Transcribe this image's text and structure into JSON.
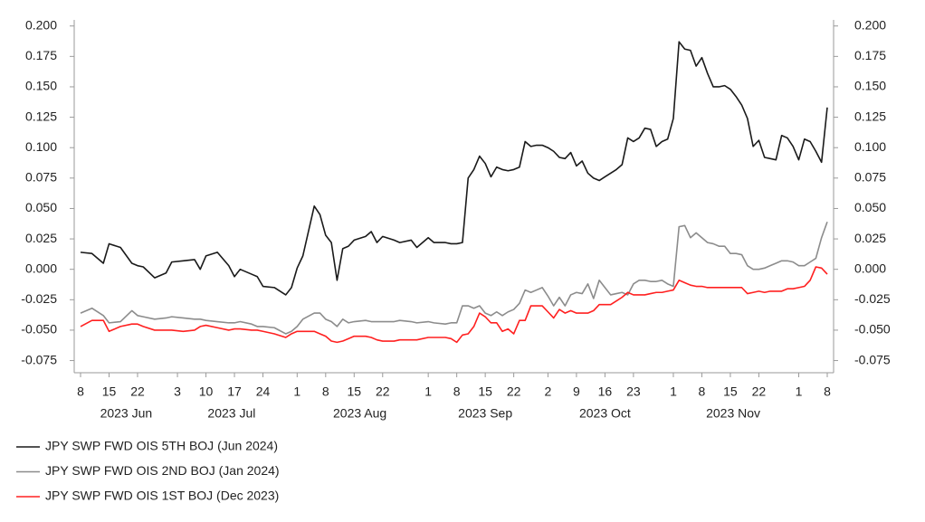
{
  "chart_data": {
    "type": "line",
    "x": [
      "2023-06-08",
      "2023-06-12",
      "2023-06-14",
      "2023-06-15",
      "2023-06-19",
      "2023-06-21",
      "2023-06-22",
      "2023-06-23",
      "2023-06-27",
      "2023-06-29",
      "2023-06-30",
      "2023-07-04",
      "2023-07-06",
      "2023-07-07",
      "2023-07-10",
      "2023-07-12",
      "2023-07-14",
      "2023-07-17",
      "2023-07-18",
      "2023-07-20",
      "2023-07-21",
      "2023-07-24",
      "2023-07-26",
      "2023-07-28",
      "2023-07-31",
      "2023-08-01",
      "2023-08-02",
      "2023-08-04",
      "2023-08-07",
      "2023-08-08",
      "2023-08-09",
      "2023-08-10",
      "2023-08-11",
      "2023-08-14",
      "2023-08-15",
      "2023-08-17",
      "2023-08-18",
      "2023-08-21",
      "2023-08-22",
      "2023-08-24",
      "2023-08-25",
      "2023-08-29",
      "2023-08-30",
      "2023-09-01",
      "2023-09-04",
      "2023-09-06",
      "2023-09-07",
      "2023-09-08",
      "2023-09-11",
      "2023-09-12",
      "2023-09-13",
      "2023-09-14",
      "2023-09-15",
      "2023-09-18",
      "2023-09-19",
      "2023-09-20",
      "2023-09-21",
      "2023-09-22",
      "2023-09-25",
      "2023-09-26",
      "2023-09-27",
      "2023-09-28",
      "2023-09-29",
      "2023-10-02",
      "2023-10-03",
      "2023-10-04",
      "2023-10-05",
      "2023-10-06",
      "2023-10-09",
      "2023-10-10",
      "2023-10-11",
      "2023-10-12",
      "2023-10-13",
      "2023-10-16",
      "2023-10-17",
      "2023-10-18",
      "2023-10-19",
      "2023-10-20",
      "2023-10-23",
      "2023-10-24",
      "2023-10-25",
      "2023-10-26",
      "2023-10-27",
      "2023-10-30",
      "2023-10-31",
      "2023-11-01",
      "2023-11-02",
      "2023-11-03",
      "2023-11-06",
      "2023-11-07",
      "2023-11-08",
      "2023-11-09",
      "2023-11-10",
      "2023-11-13",
      "2023-11-14",
      "2023-11-15",
      "2023-11-16",
      "2023-11-17",
      "2023-11-20",
      "2023-11-21",
      "2023-11-22",
      "2023-11-23",
      "2023-11-24",
      "2023-11-27",
      "2023-11-28",
      "2023-11-29",
      "2023-11-30",
      "2023-12-01",
      "2023-12-04",
      "2023-12-05",
      "2023-12-06",
      "2023-12-07",
      "2023-12-08"
    ],
    "series": [
      {
        "name": "JPY SWP FWD OIS 5TH BOJ (Jun 2024)",
        "color": "#1a1a1a",
        "values": [
          0.014,
          0.013,
          0.005,
          0.021,
          0.018,
          0.005,
          0.003,
          0.002,
          -0.007,
          -0.003,
          0.006,
          0.007,
          0.008,
          0.0,
          0.011,
          0.014,
          0.003,
          -0.006,
          0.0,
          -0.004,
          -0.006,
          -0.014,
          -0.015,
          -0.021,
          -0.015,
          0.001,
          0.011,
          0.052,
          0.045,
          0.028,
          0.022,
          -0.009,
          0.017,
          0.019,
          0.024,
          0.027,
          0.031,
          0.022,
          0.027,
          0.024,
          0.022,
          0.024,
          0.018,
          0.026,
          0.022,
          0.022,
          0.021,
          0.021,
          0.022,
          0.075,
          0.082,
          0.093,
          0.087,
          0.076,
          0.084,
          0.082,
          0.081,
          0.082,
          0.084,
          0.105,
          0.101,
          0.102,
          0.102,
          0.1,
          0.097,
          0.092,
          0.091,
          0.096,
          0.085,
          0.089,
          0.079,
          0.075,
          0.073,
          0.076,
          0.079,
          0.082,
          0.086,
          0.108,
          0.105,
          0.108,
          0.116,
          0.115,
          0.101,
          0.105,
          0.107,
          0.124,
          0.187,
          0.181,
          0.18,
          0.167,
          0.174,
          0.161,
          0.15,
          0.15,
          0.151,
          0.148,
          0.142,
          0.135,
          0.124,
          0.101,
          0.106,
          0.092,
          0.091,
          0.09,
          0.11,
          0.108,
          0.101,
          0.09,
          0.107,
          0.105,
          0.097,
          0.088,
          0.133
        ]
      },
      {
        "name": "JPY SWP FWD OIS 2ND BOJ (Jan 2024)",
        "color": "#8c8c8c",
        "values": [
          -0.036,
          -0.032,
          -0.038,
          -0.044,
          -0.043,
          -0.034,
          -0.038,
          -0.039,
          -0.041,
          -0.04,
          -0.039,
          -0.04,
          -0.041,
          -0.041,
          -0.042,
          -0.043,
          -0.044,
          -0.044,
          -0.043,
          -0.045,
          -0.047,
          -0.047,
          -0.048,
          -0.053,
          -0.051,
          -0.047,
          -0.041,
          -0.036,
          -0.036,
          -0.041,
          -0.043,
          -0.047,
          -0.041,
          -0.044,
          -0.043,
          -0.042,
          -0.043,
          -0.043,
          -0.043,
          -0.043,
          -0.042,
          -0.043,
          -0.044,
          -0.043,
          -0.044,
          -0.045,
          -0.044,
          -0.044,
          -0.03,
          -0.03,
          -0.032,
          -0.03,
          -0.036,
          -0.038,
          -0.035,
          -0.038,
          -0.035,
          -0.033,
          -0.028,
          -0.017,
          -0.019,
          -0.017,
          -0.015,
          -0.022,
          -0.03,
          -0.023,
          -0.03,
          -0.021,
          -0.019,
          -0.02,
          -0.012,
          -0.024,
          -0.009,
          -0.015,
          -0.021,
          -0.02,
          -0.019,
          -0.021,
          -0.012,
          -0.009,
          -0.009,
          -0.01,
          -0.01,
          -0.009,
          -0.012,
          -0.014,
          0.035,
          0.036,
          0.026,
          0.03,
          0.026,
          0.022,
          0.021,
          0.019,
          0.019,
          0.013,
          0.013,
          0.012,
          0.003,
          0.0,
          0.0,
          0.001,
          0.003,
          0.005,
          0.007,
          0.007,
          0.006,
          0.003,
          0.003,
          0.006,
          0.009,
          0.026,
          0.039
        ]
      },
      {
        "name": "JPY SWP FWD OIS 1ST BOJ (Dec 2023)",
        "color": "#ff2020",
        "values": [
          -0.047,
          -0.042,
          -0.042,
          -0.051,
          -0.047,
          -0.045,
          -0.045,
          -0.047,
          -0.05,
          -0.05,
          -0.05,
          -0.051,
          -0.05,
          -0.047,
          -0.046,
          -0.048,
          -0.05,
          -0.049,
          -0.049,
          -0.05,
          -0.05,
          -0.051,
          -0.053,
          -0.056,
          -0.053,
          -0.051,
          -0.051,
          -0.051,
          -0.053,
          -0.055,
          -0.059,
          -0.06,
          -0.059,
          -0.057,
          -0.055,
          -0.055,
          -0.056,
          -0.058,
          -0.059,
          -0.059,
          -0.058,
          -0.058,
          -0.058,
          -0.056,
          -0.056,
          -0.056,
          -0.057,
          -0.06,
          -0.054,
          -0.053,
          -0.047,
          -0.036,
          -0.039,
          -0.044,
          -0.044,
          -0.051,
          -0.049,
          -0.053,
          -0.042,
          -0.042,
          -0.03,
          -0.03,
          -0.03,
          -0.035,
          -0.04,
          -0.033,
          -0.036,
          -0.034,
          -0.036,
          -0.036,
          -0.036,
          -0.034,
          -0.029,
          -0.029,
          -0.029,
          -0.026,
          -0.023,
          -0.019,
          -0.021,
          -0.021,
          -0.021,
          -0.02,
          -0.019,
          -0.019,
          -0.018,
          -0.017,
          -0.009,
          -0.011,
          -0.013,
          -0.014,
          -0.014,
          -0.015,
          -0.015,
          -0.015,
          -0.015,
          -0.015,
          -0.015,
          -0.015,
          -0.02,
          -0.019,
          -0.018,
          -0.019,
          -0.018,
          -0.018,
          -0.018,
          -0.016,
          -0.016,
          -0.015,
          -0.014,
          -0.009,
          0.002,
          0.001,
          -0.004
        ]
      }
    ],
    "xlim": [
      "2023-06-08",
      "2023-12-08"
    ],
    "xticks": [
      {
        "value": "2023-06-08",
        "label": "8"
      },
      {
        "value": "2023-06-15",
        "label": "15"
      },
      {
        "value": "2023-06-22",
        "label": "22"
      },
      {
        "value": "2023-07-03",
        "label": "3"
      },
      {
        "value": "2023-07-10",
        "label": "10"
      },
      {
        "value": "2023-07-17",
        "label": "17"
      },
      {
        "value": "2023-07-24",
        "label": "24"
      },
      {
        "value": "2023-08-01",
        "label": "1"
      },
      {
        "value": "2023-08-08",
        "label": "8"
      },
      {
        "value": "2023-08-15",
        "label": "15"
      },
      {
        "value": "2023-08-22",
        "label": "22"
      },
      {
        "value": "2023-09-01",
        "label": "1"
      },
      {
        "value": "2023-09-08",
        "label": "8"
      },
      {
        "value": "2023-09-15",
        "label": "15"
      },
      {
        "value": "2023-09-22",
        "label": "22"
      },
      {
        "value": "2023-10-02",
        "label": "2"
      },
      {
        "value": "2023-10-09",
        "label": "9"
      },
      {
        "value": "2023-10-16",
        "label": "16"
      },
      {
        "value": "2023-10-23",
        "label": "23"
      },
      {
        "value": "2023-11-01",
        "label": "1"
      },
      {
        "value": "2023-11-08",
        "label": "8"
      },
      {
        "value": "2023-11-15",
        "label": "15"
      },
      {
        "value": "2023-11-22",
        "label": "22"
      },
      {
        "value": "2023-12-01",
        "label": "1"
      },
      {
        "value": "2023-12-08",
        "label": "8"
      }
    ],
    "x_groups": [
      {
        "value": "2023-06",
        "label": "2023 Jun"
      },
      {
        "value": "2023-07",
        "label": "2023 Jul"
      },
      {
        "value": "2023-08",
        "label": "2023 Aug"
      },
      {
        "value": "2023-09",
        "label": "2023 Sep"
      },
      {
        "value": "2023-10",
        "label": "2023 Oct"
      },
      {
        "value": "2023-11",
        "label": "2023 Nov"
      }
    ],
    "ylim": [
      -0.085,
      0.205
    ],
    "yticks": [
      {
        "value": 0.2,
        "label": "0.200"
      },
      0.175,
      {
        "value": 0.15,
        "label": "0.150"
      },
      0.125,
      {
        "value": 0.1,
        "label": "0.100"
      },
      0.075,
      {
        "value": 0.05,
        "label": "0.050"
      },
      0.025,
      {
        "value": 0,
        "label": "0.000"
      },
      -0.025,
      {
        "value": -0.05,
        "label": "-0.050"
      },
      -0.075
    ],
    "y2lim": [
      -0.085,
      0.205
    ],
    "y2ticks": [
      {
        "value": 0.2,
        "label": "0.200"
      },
      0.175,
      {
        "value": 0.15,
        "label": "0.150"
      },
      0.125,
      {
        "value": 0.1,
        "label": "0.100"
      },
      0.075,
      {
        "value": 0.05,
        "label": "0.050"
      },
      0.025,
      {
        "value": 0,
        "label": "0.000"
      },
      -0.025,
      {
        "value": -0.05,
        "label": "-0.050"
      },
      -0.075
    ],
    "grid": false,
    "legend": "bottom-left"
  }
}
